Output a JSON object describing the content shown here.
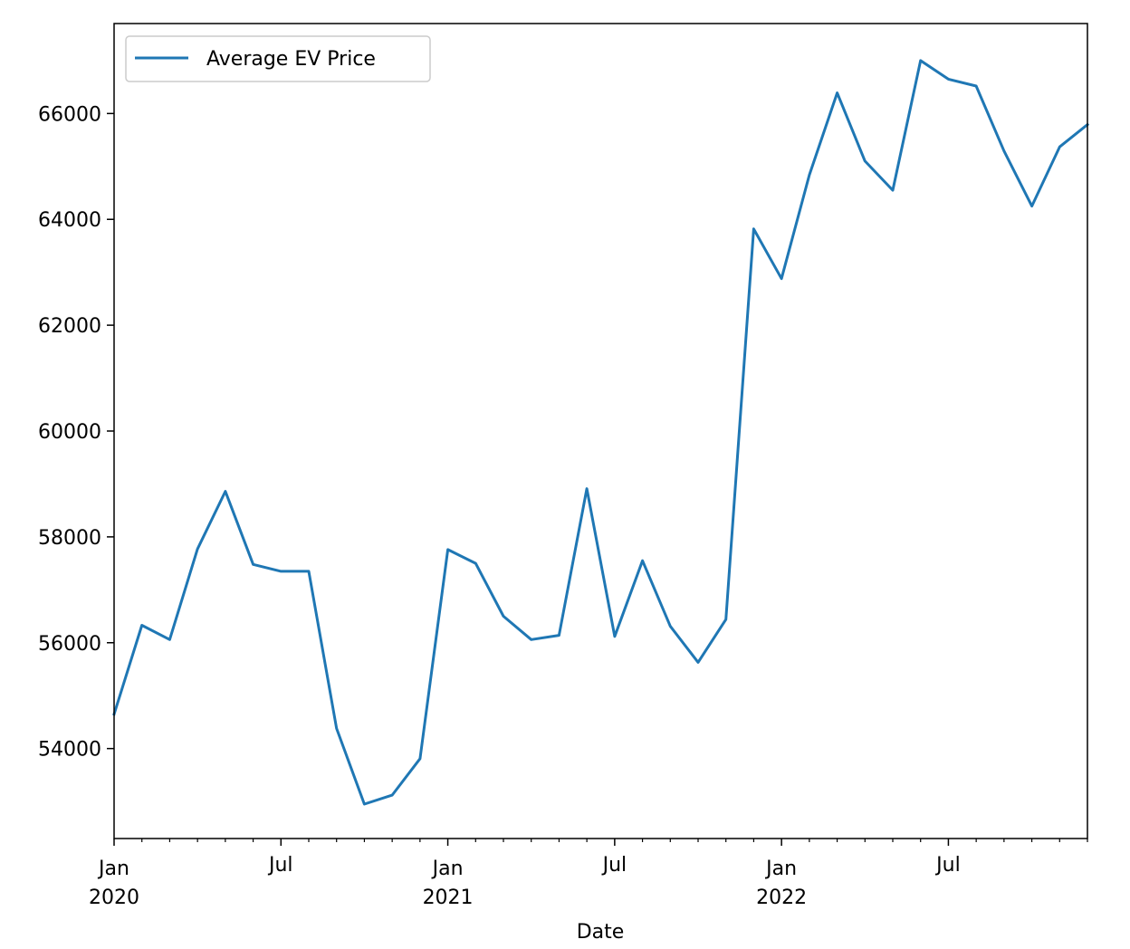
{
  "chart_data": {
    "type": "line",
    "title": "",
    "xlabel": "Date",
    "ylabel": "",
    "xlim": [
      "2020-01",
      "2022-12"
    ],
    "ylim": [
      52300,
      67700
    ],
    "legend": "upper-left",
    "grid": false,
    "x": [
      "2020-01",
      "2020-02",
      "2020-03",
      "2020-04",
      "2020-05",
      "2020-06",
      "2020-07",
      "2020-08",
      "2020-09",
      "2020-10",
      "2020-11",
      "2020-12",
      "2021-01",
      "2021-02",
      "2021-03",
      "2021-04",
      "2021-05",
      "2021-06",
      "2021-07",
      "2021-08",
      "2021-09",
      "2021-10",
      "2021-11",
      "2021-12",
      "2022-01",
      "2022-02",
      "2022-03",
      "2022-04",
      "2022-05",
      "2022-06",
      "2022-07",
      "2022-08",
      "2022-09",
      "2022-10",
      "2022-11",
      "2022-12"
    ],
    "series": [
      {
        "name": "Average EV Price",
        "color": "#1f77b4",
        "values": [
          54650,
          56330,
          56060,
          57770,
          58860,
          57480,
          57350,
          57350,
          54380,
          52950,
          53120,
          53810,
          57760,
          57500,
          56500,
          56060,
          56140,
          58910,
          56120,
          57550,
          56310,
          55630,
          56440,
          63820,
          62880,
          64840,
          66390,
          65100,
          64550,
          67000,
          66650,
          66520,
          65290,
          64250,
          65370,
          65790
        ]
      }
    ],
    "y_ticks": [
      54000,
      56000,
      58000,
      60000,
      62000,
      64000,
      66000
    ],
    "y_tick_labels": [
      "54000",
      "56000",
      "58000",
      "60000",
      "62000",
      "64000",
      "66000"
    ],
    "x_major_ticks": [
      {
        "date": "2020-01",
        "label": "Jan",
        "sublabel": "2020"
      },
      {
        "date": "2020-07",
        "label": "Jul",
        "sublabel": ""
      },
      {
        "date": "2021-01",
        "label": "Jan",
        "sublabel": "2021"
      },
      {
        "date": "2021-07",
        "label": "Jul",
        "sublabel": ""
      },
      {
        "date": "2022-01",
        "label": "Jan",
        "sublabel": "2022"
      },
      {
        "date": "2022-07",
        "label": "Jul",
        "sublabel": ""
      }
    ]
  }
}
